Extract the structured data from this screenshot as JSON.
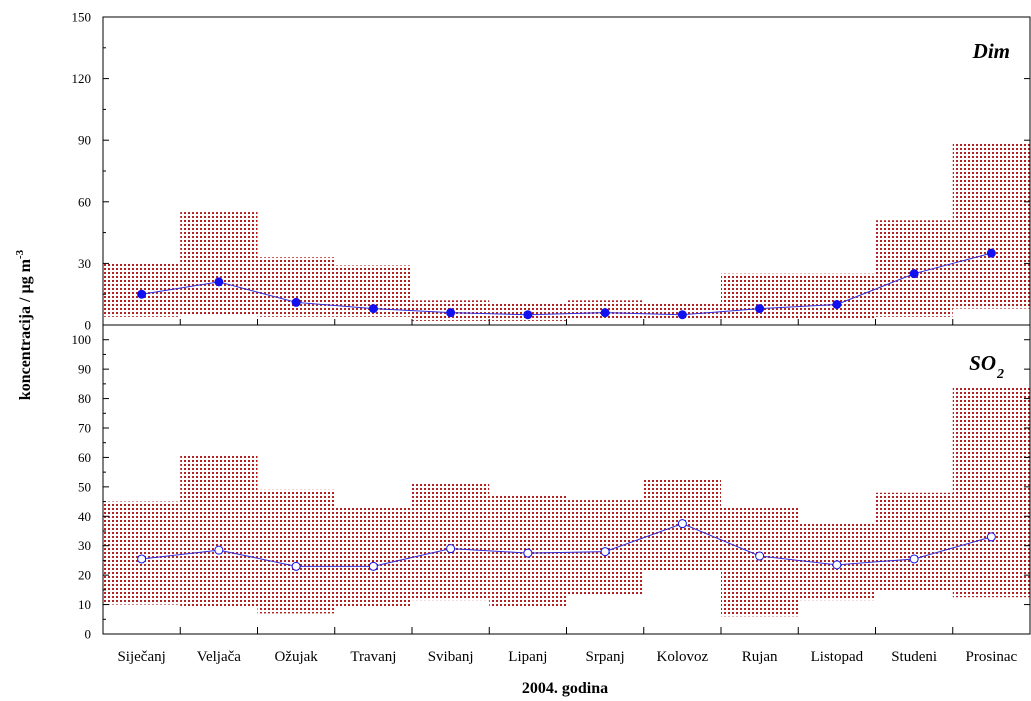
{
  "colors": {
    "band": "#b22222",
    "line": "#3030e0",
    "marker": "#1010f0",
    "axis": "#000000"
  },
  "chart_data": {
    "type": "line",
    "xlabel": "2004. godina",
    "ylabel": "koncentracija / µg m",
    "ylabel_superscript": "-3",
    "categories": [
      "Siječanj",
      "Veljača",
      "Ožujak",
      "Travanj",
      "Svibanj",
      "Lipanj",
      "Srpanj",
      "Kolovoz",
      "Rujan",
      "Listopad",
      "Studeni",
      "Prosinac"
    ],
    "panels": [
      {
        "name": "Dim",
        "title": "Dim",
        "ylim": [
          0,
          150
        ],
        "yticks": [
          0,
          30,
          60,
          90,
          120,
          150
        ],
        "marker": "filled-circle",
        "mean": [
          15,
          21,
          11,
          8,
          6,
          5,
          6,
          5,
          8,
          10,
          25,
          35
        ],
        "min": [
          4,
          5,
          4,
          4,
          2,
          2,
          3,
          3,
          3,
          3,
          4,
          8
        ],
        "max": [
          30,
          55,
          33,
          29,
          12,
          11,
          12,
          11,
          25,
          25,
          51,
          89
        ]
      },
      {
        "name": "SO2",
        "title": "SO",
        "title_subscript": "2",
        "ylim": [
          0,
          105
        ],
        "yticks": [
          0,
          10,
          20,
          30,
          40,
          50,
          60,
          70,
          80,
          90,
          100
        ],
        "marker": "open-circle",
        "mean": [
          25.5,
          28.5,
          23,
          23,
          29,
          27.5,
          28,
          37.5,
          26.5,
          23.5,
          25.5,
          33
        ],
        "min": [
          10,
          9,
          7,
          9,
          11.5,
          9,
          13,
          21.5,
          6,
          11.5,
          14.5,
          12.5
        ],
        "max": [
          45,
          61,
          49,
          43.5,
          51,
          47.5,
          45.5,
          52.5,
          43,
          37.5,
          48,
          84
        ]
      }
    ]
  }
}
